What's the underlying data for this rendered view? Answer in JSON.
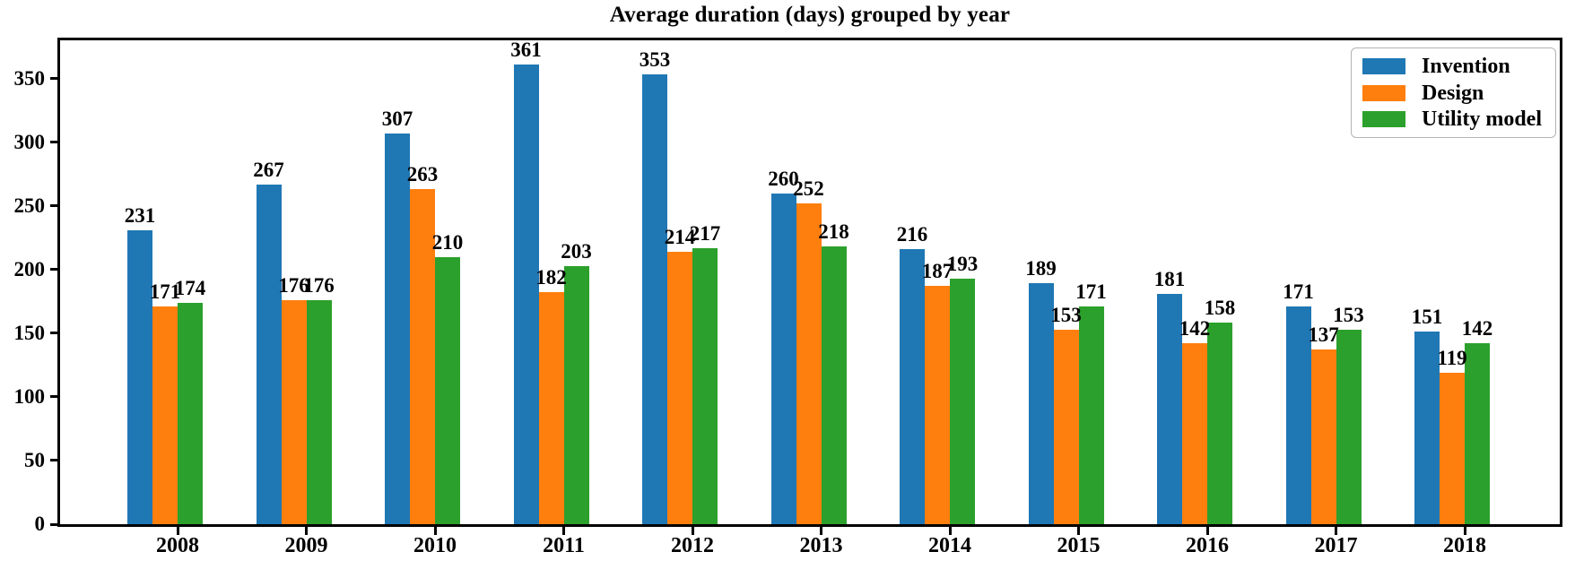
{
  "chart_data": {
    "type": "bar",
    "title": "Average duration (days) grouped by year",
    "categories": [
      "2008",
      "2009",
      "2010",
      "2011",
      "2012",
      "2013",
      "2014",
      "2015",
      "2016",
      "2017",
      "2018"
    ],
    "series": [
      {
        "name": "Invention",
        "color": "#1f77b4",
        "values": [
          231,
          267,
          307,
          361,
          353,
          260,
          216,
          189,
          181,
          171,
          151
        ]
      },
      {
        "name": "Design",
        "color": "#ff7f0e",
        "values": [
          171,
          176,
          263,
          182,
          214,
          252,
          187,
          153,
          142,
          137,
          119
        ]
      },
      {
        "name": "Utility model",
        "color": "#2ca02c",
        "values": [
          174,
          176,
          210,
          203,
          217,
          218,
          193,
          171,
          158,
          153,
          142
        ]
      }
    ],
    "xlabel": "",
    "ylabel": "",
    "ylim": [
      0,
      380
    ],
    "yticks": [
      0,
      50,
      100,
      150,
      200,
      250,
      300,
      350
    ],
    "grid": false,
    "legend_position": "upper right",
    "bar_value_labels": true,
    "axis_color": "#000000",
    "text_color": "#000000",
    "background_color": "#ffffff"
  }
}
